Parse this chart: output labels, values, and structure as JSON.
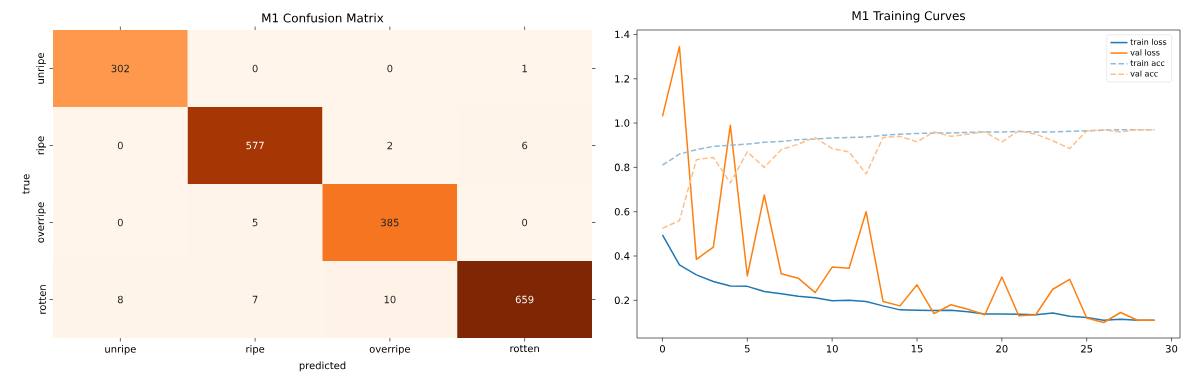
{
  "chart_data": [
    {
      "type": "heatmap",
      "title": "M1 Confusion Matrix",
      "xlabel": "predicted",
      "ylabel": "true",
      "categories": [
        "unripe",
        "ripe",
        "overripe",
        "rotten"
      ],
      "y_categories": [
        "unripe",
        "ripe",
        "overripe",
        "rotten"
      ],
      "cells": [
        [
          302,
          0,
          0,
          1
        ],
        [
          0,
          577,
          2,
          6
        ],
        [
          0,
          5,
          385,
          0
        ],
        [
          8,
          7,
          10,
          659
        ]
      ],
      "data_labels": true
    },
    {
      "type": "line",
      "title": "M1 Training Curves",
      "x": [
        0,
        1,
        2,
        3,
        4,
        5,
        6,
        7,
        8,
        9,
        10,
        11,
        12,
        13,
        14,
        15,
        16,
        17,
        18,
        19,
        20,
        21,
        22,
        23,
        24,
        25,
        26,
        27,
        28,
        29
      ],
      "xlim": [
        -1.5,
        30.5
      ],
      "xticks": [
        0,
        5,
        10,
        15,
        20,
        25,
        30
      ],
      "ylim": [
        0.03,
        1.42
      ],
      "yticks": [
        {
          "value": 0.2,
          "label": "0.2"
        },
        {
          "value": 0.4,
          "label": "0.4"
        },
        {
          "value": 0.6,
          "label": "0.6"
        },
        {
          "value": 0.8,
          "label": "0.8"
        },
        {
          "value": 1.0,
          "label": "1.0"
        },
        {
          "value": 1.2,
          "label": "1.2"
        },
        {
          "value": 1.4,
          "label": "1.4"
        }
      ],
      "legend": "top right",
      "series": [
        {
          "name": "train loss",
          "color": "#1f77b4",
          "line_style": "solid",
          "values": [
            0.495,
            0.36,
            0.315,
            0.285,
            0.265,
            0.263,
            0.24,
            0.23,
            0.218,
            0.212,
            0.198,
            0.2,
            0.195,
            0.175,
            0.157,
            0.155,
            0.154,
            0.155,
            0.148,
            0.138,
            0.138,
            0.137,
            0.135,
            0.143,
            0.128,
            0.122,
            0.11,
            0.115,
            0.11,
            0.11
          ]
        },
        {
          "name": "val loss",
          "color": "#ff7f0e",
          "line_style": "solid",
          "values": [
            1.03,
            1.345,
            0.385,
            0.44,
            0.99,
            0.31,
            0.675,
            0.32,
            0.3,
            0.235,
            0.35,
            0.345,
            0.6,
            0.195,
            0.175,
            0.27,
            0.14,
            0.18,
            0.16,
            0.135,
            0.305,
            0.13,
            0.135,
            0.25,
            0.295,
            0.12,
            0.1,
            0.145,
            0.11,
            0.11
          ]
        },
        {
          "name": "train acc",
          "color": "#8fbbd9",
          "line_style": "dashed",
          "values": [
            0.81,
            0.86,
            0.88,
            0.895,
            0.9,
            0.905,
            0.913,
            0.917,
            0.925,
            0.928,
            0.933,
            0.935,
            0.937,
            0.945,
            0.95,
            0.953,
            0.955,
            0.955,
            0.958,
            0.96,
            0.96,
            0.962,
            0.96,
            0.96,
            0.963,
            0.965,
            0.968,
            0.97,
            0.97,
            0.97
          ]
        },
        {
          "name": "val acc",
          "color": "#ffbf86",
          "line_style": "dashed",
          "values": [
            0.525,
            0.56,
            0.835,
            0.845,
            0.73,
            0.87,
            0.8,
            0.88,
            0.905,
            0.935,
            0.885,
            0.87,
            0.77,
            0.935,
            0.94,
            0.915,
            0.96,
            0.94,
            0.95,
            0.96,
            0.915,
            0.965,
            0.95,
            0.92,
            0.885,
            0.965,
            0.97,
            0.96,
            0.97,
            0.97
          ]
        }
      ]
    }
  ]
}
